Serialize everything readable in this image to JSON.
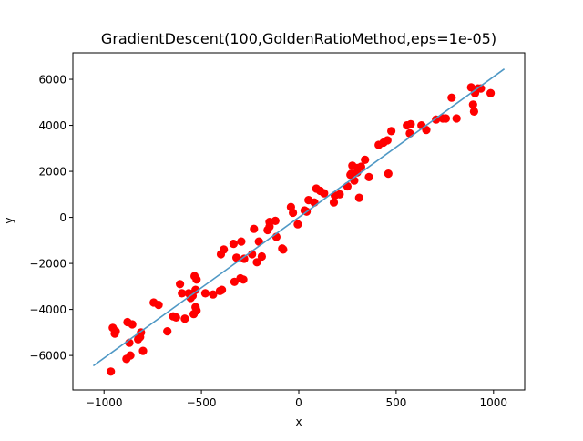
{
  "chart_data": {
    "type": "scatter",
    "title": "GradientDescent(100,GoldenRatioMethod,eps=1e-05)",
    "xlabel": "x",
    "ylabel": "y",
    "xlim": [
      -1160,
      1160
    ],
    "ylim": [
      -7500,
      7150
    ],
    "x_ticks": [
      {
        "value": -1000,
        "label": "−1000"
      },
      {
        "value": -500,
        "label": "−500"
      },
      {
        "value": 0,
        "label": "0"
      },
      {
        "value": 500,
        "label": "500"
      },
      {
        "value": 1000,
        "label": "1000"
      }
    ],
    "y_ticks": [
      {
        "value": -6000,
        "label": "−6000"
      },
      {
        "value": -4000,
        "label": "−4000"
      },
      {
        "value": -2000,
        "label": "−2000"
      },
      {
        "value": 0,
        "label": "0"
      },
      {
        "value": 2000,
        "label": "2000"
      },
      {
        "value": 4000,
        "label": "4000"
      },
      {
        "value": 6000,
        "label": "6000"
      }
    ],
    "grid": false,
    "point_color": "#ff0000",
    "line_color": "#4f98c5",
    "points": [
      [
        -965,
        -6700
      ],
      [
        -955,
        -4800
      ],
      [
        -945,
        -5050
      ],
      [
        -940,
        -4950
      ],
      [
        -885,
        -6150
      ],
      [
        -880,
        -4550
      ],
      [
        -870,
        -5450
      ],
      [
        -865,
        -6000
      ],
      [
        -855,
        -4650
      ],
      [
        -825,
        -5300
      ],
      [
        -815,
        -5200
      ],
      [
        -810,
        -5000
      ],
      [
        -800,
        -5800
      ],
      [
        -745,
        -3700
      ],
      [
        -720,
        -3800
      ],
      [
        -675,
        -4950
      ],
      [
        -645,
        -4300
      ],
      [
        -630,
        -4350
      ],
      [
        -610,
        -2900
      ],
      [
        -600,
        -3300
      ],
      [
        -585,
        -4400
      ],
      [
        -565,
        -3300
      ],
      [
        -555,
        -3500
      ],
      [
        -545,
        -3400
      ],
      [
        -540,
        -4200
      ],
      [
        -535,
        -2550
      ],
      [
        -530,
        -3150
      ],
      [
        -530,
        -3900
      ],
      [
        -525,
        -2700
      ],
      [
        -525,
        -4050
      ],
      [
        -480,
        -3300
      ],
      [
        -440,
        -3350
      ],
      [
        -405,
        -3200
      ],
      [
        -395,
        -3150
      ],
      [
        -400,
        -1600
      ],
      [
        -385,
        -1400
      ],
      [
        -335,
        -1150
      ],
      [
        -330,
        -2800
      ],
      [
        -320,
        -1750
      ],
      [
        -300,
        -2650
      ],
      [
        -295,
        -1050
      ],
      [
        -285,
        -2700
      ],
      [
        -280,
        -1800
      ],
      [
        -240,
        -1600
      ],
      [
        -230,
        -500
      ],
      [
        -215,
        -1950
      ],
      [
        -205,
        -1050
      ],
      [
        -190,
        -1700
      ],
      [
        -160,
        -550
      ],
      [
        -150,
        -400
      ],
      [
        -150,
        -200
      ],
      [
        -120,
        -150
      ],
      [
        -115,
        -850
      ],
      [
        -85,
        -1350
      ],
      [
        -80,
        -1400
      ],
      [
        -40,
        450
      ],
      [
        -30,
        200
      ],
      [
        -5,
        -300
      ],
      [
        30,
        300
      ],
      [
        40,
        250
      ],
      [
        50,
        750
      ],
      [
        80,
        650
      ],
      [
        90,
        1250
      ],
      [
        110,
        1150
      ],
      [
        130,
        1050
      ],
      [
        180,
        650
      ],
      [
        185,
        950
      ],
      [
        210,
        1000
      ],
      [
        250,
        1350
      ],
      [
        265,
        1850
      ],
      [
        270,
        1900
      ],
      [
        275,
        2250
      ],
      [
        285,
        1600
      ],
      [
        300,
        2150
      ],
      [
        300,
        1950
      ],
      [
        310,
        850
      ],
      [
        320,
        2200
      ],
      [
        340,
        2500
      ],
      [
        360,
        1750
      ],
      [
        410,
        3150
      ],
      [
        435,
        3250
      ],
      [
        455,
        3350
      ],
      [
        460,
        1900
      ],
      [
        475,
        3750
      ],
      [
        555,
        4000
      ],
      [
        570,
        3650
      ],
      [
        575,
        4050
      ],
      [
        630,
        4000
      ],
      [
        655,
        3800
      ],
      [
        705,
        4250
      ],
      [
        740,
        4300
      ],
      [
        755,
        4300
      ],
      [
        785,
        5200
      ],
      [
        810,
        4300
      ],
      [
        885,
        5650
      ],
      [
        895,
        4900
      ],
      [
        900,
        4600
      ],
      [
        905,
        5400
      ],
      [
        920,
        5600
      ],
      [
        935,
        5600
      ],
      [
        985,
        5400
      ]
    ],
    "fit_line": {
      "x": [
        -1055,
        1055
      ],
      "y": [
        -6450,
        6450
      ]
    }
  }
}
